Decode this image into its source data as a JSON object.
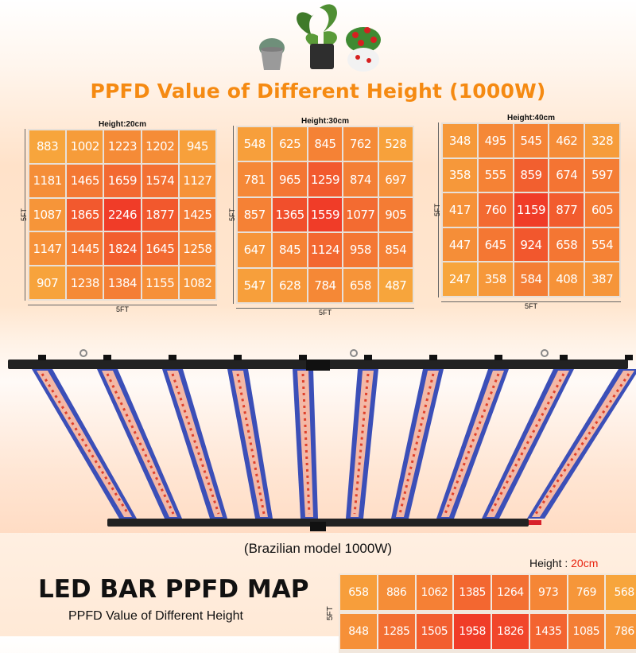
{
  "title": "PPFD Value of Different Height (1000W)",
  "panels": [
    {
      "height_label": "Height:20cm",
      "side_label": "5FT",
      "bottom_label": "5FT",
      "values": [
        883,
        1002,
        1223,
        1202,
        945,
        1181,
        1465,
        1659,
        1574,
        1127,
        1087,
        1865,
        2246,
        1877,
        1425,
        1147,
        1445,
        1824,
        1645,
        1258,
        907,
        1238,
        1384,
        1155,
        1082
      ]
    },
    {
      "height_label": "Height:30cm",
      "side_label": "5FT",
      "bottom_label": "5FT",
      "values": [
        548,
        625,
        845,
        762,
        528,
        781,
        965,
        1259,
        874,
        697,
        857,
        1365,
        1559,
        1077,
        905,
        647,
        845,
        1124,
        958,
        854,
        547,
        628,
        784,
        658,
        487
      ]
    },
    {
      "height_label": "Height:40cm",
      "side_label": "5FT",
      "bottom_label": "5FT",
      "values": [
        348,
        495,
        545,
        462,
        328,
        358,
        555,
        859,
        674,
        597,
        417,
        760,
        1159,
        877,
        605,
        447,
        645,
        924,
        658,
        554,
        247,
        358,
        584,
        408,
        387
      ]
    }
  ],
  "caption": "(Brazilian model 1000W)",
  "map_title": "LED BAR PPFD MAP",
  "map_subtitle": "PPFD Value of Different Height",
  "map_height_prefix": "Height :",
  "map_height_value": "20cm",
  "map_side_label": "5FT",
  "map_rows": [
    [
      658,
      886,
      1062,
      1385,
      1264,
      973,
      769,
      568
    ],
    [
      848,
      1285,
      1505,
      1958,
      1826,
      1435,
      1085,
      786
    ]
  ],
  "colors": {
    "title": "#f58a12",
    "hot": "#f0442a",
    "cool": "#f7a53c",
    "height_value": "#e8200c"
  }
}
